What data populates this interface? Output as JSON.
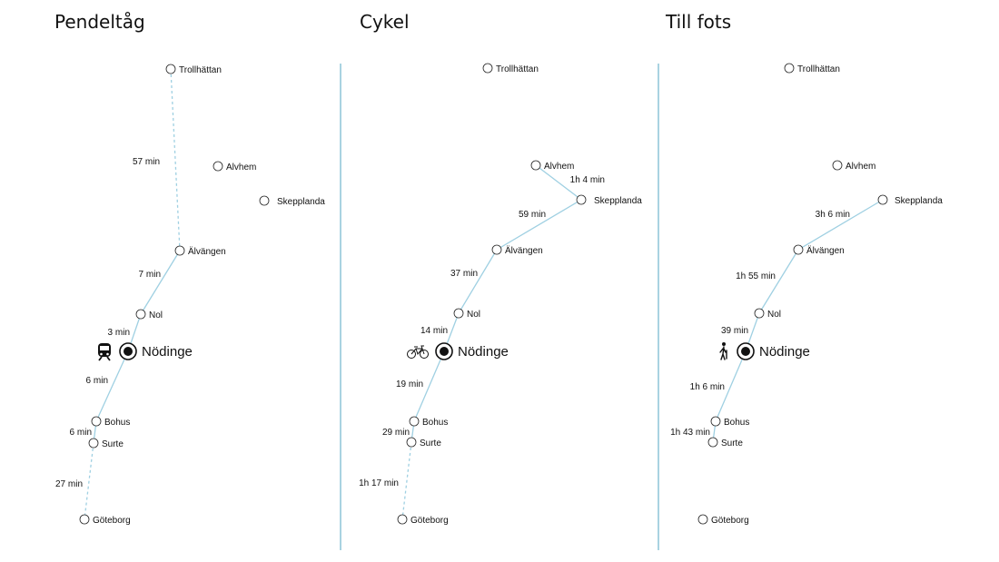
{
  "panels": [
    {
      "title": "Pendeltåg",
      "mode_icon": "train-icon",
      "hub": "Nödinge",
      "stations": [
        "Trollhättan",
        "Alvhem",
        "Skepplanda",
        "Älvängen",
        "Nol",
        "Bohus",
        "Surte",
        "Göteborg"
      ],
      "segments": [
        {
          "from": "Trollhättan",
          "to": "Älvängen",
          "time": "57 min",
          "style": "dashed"
        },
        {
          "from": "Älvängen",
          "to": "Nol",
          "time": "7 min",
          "style": "solid"
        },
        {
          "from": "Nol",
          "to": "Nödinge",
          "time": "3 min",
          "style": "solid"
        },
        {
          "from": "Nödinge",
          "to": "Bohus",
          "time": "6 min",
          "style": "solid"
        },
        {
          "from": "Bohus",
          "to": "Surte",
          "time": "6 min",
          "style": "solid"
        },
        {
          "from": "Surte",
          "to": "Göteborg",
          "time": "27 min",
          "style": "dashed"
        }
      ]
    },
    {
      "title": "Cykel",
      "mode_icon": "bicycle-icon",
      "hub": "Nödinge",
      "stations": [
        "Trollhättan",
        "Alvhem",
        "Skepplanda",
        "Älvängen",
        "Nol",
        "Bohus",
        "Surte",
        "Göteborg"
      ],
      "segments": [
        {
          "from": "Alvhem",
          "to": "Skepplanda",
          "time": "1h 4 min",
          "style": "solid"
        },
        {
          "from": "Skepplanda",
          "to": "Älvängen",
          "time": "59 min",
          "style": "solid"
        },
        {
          "from": "Älvängen",
          "to": "Nol",
          "time": "37 min",
          "style": "solid"
        },
        {
          "from": "Nol",
          "to": "Nödinge",
          "time": "14 min",
          "style": "solid"
        },
        {
          "from": "Nödinge",
          "to": "Bohus",
          "time": "19 min",
          "style": "solid"
        },
        {
          "from": "Bohus",
          "to": "Surte",
          "time": "29 min",
          "style": "solid"
        },
        {
          "from": "Surte",
          "to": "Göteborg",
          "time": "1h 17 min",
          "style": "dashed"
        }
      ]
    },
    {
      "title": "Till fots",
      "mode_icon": "pedestrian-icon",
      "hub": "Nödinge",
      "stations": [
        "Trollhättan",
        "Alvhem",
        "Skepplanda",
        "Älvängen",
        "Nol",
        "Bohus",
        "Surte",
        "Göteborg"
      ],
      "segments": [
        {
          "from": "Skepplanda",
          "to": "Älvängen",
          "time": "3h 6 min",
          "style": "solid"
        },
        {
          "from": "Älvängen",
          "to": "Nol",
          "time": "1h 55 min",
          "style": "solid"
        },
        {
          "from": "Nol",
          "to": "Nödinge",
          "time": "39 min",
          "style": "solid"
        },
        {
          "from": "Nödinge",
          "to": "Bohus",
          "time": "1h 6 min",
          "style": "solid"
        },
        {
          "from": "Bohus",
          "to": "Surte",
          "time": "1h 43 min",
          "style": "solid"
        }
      ]
    }
  ],
  "colors": {
    "line": "#9fd0e2",
    "divider": "#a9d3e1",
    "text": "#111111"
  }
}
